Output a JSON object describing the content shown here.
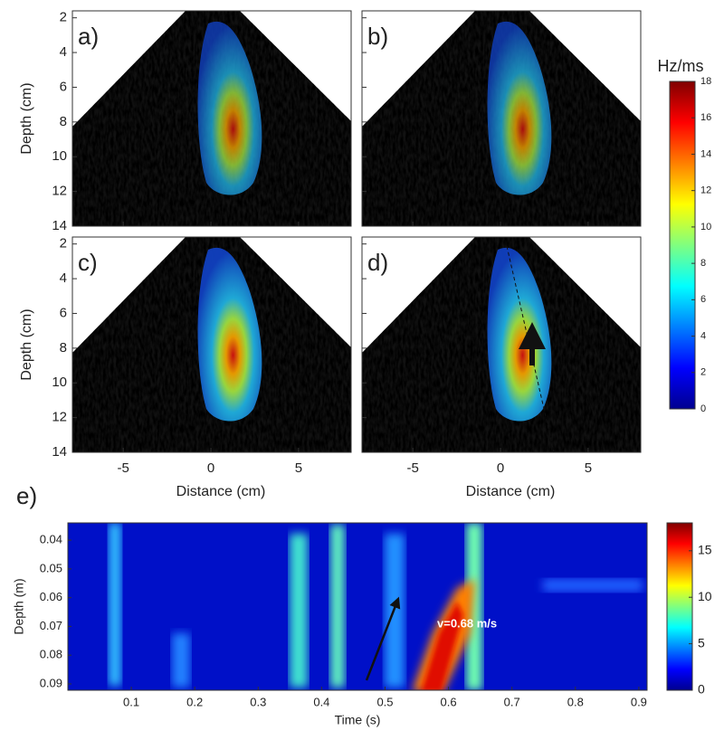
{
  "panels_top": {
    "labels": [
      "a)",
      "b)",
      "c)",
      "d)"
    ],
    "ylabel": "Depth (cm)",
    "xlabel": "Distance (cm)",
    "xlim": [
      -7.9,
      8
    ],
    "xticks": [
      -5,
      0,
      5
    ],
    "ylim": [
      1.6,
      14
    ],
    "yticks": [
      2,
      4,
      6,
      8,
      10,
      12,
      14
    ]
  },
  "colorbar_top": {
    "title": "Hz/ms",
    "lim": [
      0,
      18
    ],
    "ticks": [
      0,
      2,
      4,
      6,
      8,
      10,
      12,
      14,
      16,
      18
    ]
  },
  "panel_e": {
    "label": "e)",
    "xlabel": "Time (s)",
    "ylabel": "Depth (m)",
    "xlim": [
      0,
      0.913
    ],
    "xticks": [
      0.1,
      0.2,
      0.3,
      0.4,
      0.5,
      0.6,
      0.7,
      0.8,
      0.9
    ],
    "ylim": [
      0.034,
      0.0922
    ],
    "yticks": [
      0.04,
      0.05,
      0.06,
      0.07,
      0.08,
      0.09
    ],
    "annotation": "v=0.68 m/s"
  },
  "colorbar_e": {
    "lim": [
      0,
      18
    ],
    "ticks": [
      0,
      5,
      10,
      15
    ]
  }
}
